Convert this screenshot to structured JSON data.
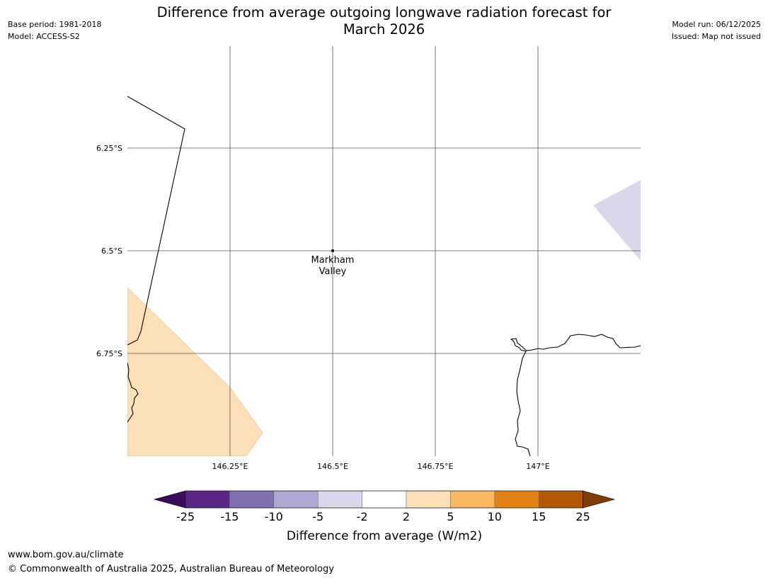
{
  "header": {
    "base_period": "Base period: 1981-2018",
    "model": "Model: ACCESS-S2",
    "model_run": "Model run: 06/12/2025",
    "issued": "Issued: Map not issued",
    "title_line1": "Difference from average outgoing longwave radiation forecast for",
    "title_line2": "March 2026"
  },
  "map": {
    "lat_labels": [
      "6.25°S",
      "6.5°S",
      "6.75°S"
    ],
    "lon_labels": [
      "146.25°E",
      "146.5°E",
      "146.75°E",
      "147°E"
    ],
    "place": {
      "line1": "Markham",
      "line2": "Valley"
    },
    "colors": {
      "land_outline": "#000000",
      "grid": "#555555",
      "positive_anomaly": "#fde0b7",
      "negative_anomaly": "#d8d8ea"
    }
  },
  "colorbar": {
    "title": "Difference from average (W/m2)",
    "ticks": [
      "-25",
      "-15",
      "-10",
      "-5",
      "-2",
      "2",
      "5",
      "10",
      "15",
      "25"
    ],
    "colors": [
      "#3a0b58",
      "#5c2588",
      "#8070b0",
      "#b0a8d2",
      "#d8d8ea",
      "#ffffff",
      "#fde0b7",
      "#fbb863",
      "#e08214",
      "#b35806",
      "#7f3b08"
    ]
  },
  "footer": {
    "url": "www.bom.gov.au/climate",
    "copyright": "© Commonwealth of Australia 2025, Australian Bureau of Meteorology"
  }
}
